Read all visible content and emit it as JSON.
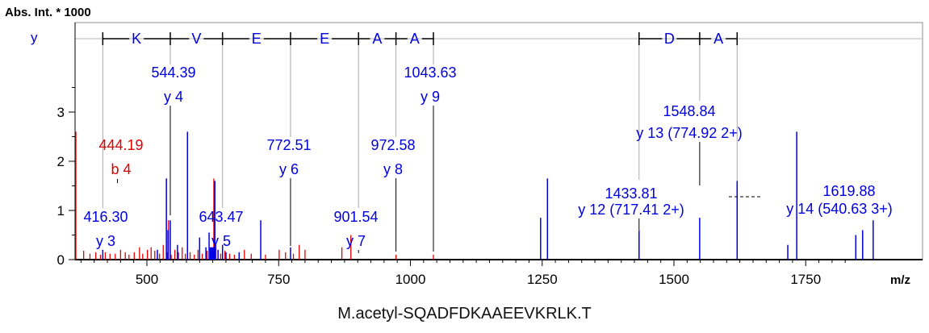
{
  "caption": "M.acetyl-SQADFDKAAEEVKRLK.T",
  "chart_data": {
    "type": "bar",
    "ylabel": "Abs. Int. * 1000",
    "xlabel": "m/z",
    "series_label": "y",
    "xlim": [
      350,
      1840
    ],
    "ylim": [
      0,
      4.5
    ],
    "xticks": [
      500,
      750,
      1000,
      1250,
      1500,
      1750
    ],
    "yticks": [
      0,
      1,
      2,
      3
    ],
    "colors": {
      "matched_y": "#0000e6",
      "matched_b": "#e60000",
      "label_y": "#0000dd",
      "label_b": "#dd0000",
      "axis": "#000000",
      "guide": "#aaaaaa"
    },
    "sequence_ladder": {
      "residues": [
        {
          "aa": "K",
          "from": 416.3,
          "to": 544.39
        },
        {
          "aa": "V",
          "from": 544.39,
          "to": 643.47
        },
        {
          "aa": "E",
          "from": 643.47,
          "to": 772.51
        },
        {
          "aa": "E",
          "from": 772.51,
          "to": 901.54
        },
        {
          "aa": "A",
          "from": 901.54,
          "to": 972.58
        },
        {
          "aa": "A",
          "from": 972.58,
          "to": 1043.63
        },
        {
          "aa": "D",
          "from": 1433.81,
          "to": 1548.84
        },
        {
          "aa": "A",
          "from": 1548.84,
          "to": 1619.88
        }
      ]
    },
    "annotations": [
      {
        "mz": "416.30",
        "ion": "y 3",
        "x": 416.3,
        "y": 0.2,
        "series": "y"
      },
      {
        "mz": "544.39",
        "ion": "y 4",
        "x": 544.39,
        "y": 1.65,
        "series": "y"
      },
      {
        "mz": "643.47",
        "ion": "y 5",
        "x": 643.47,
        "y": 1.55,
        "series": "y"
      },
      {
        "mz": "772.51",
        "ion": "y 6",
        "x": 772.51,
        "y": 0.25,
        "series": "y"
      },
      {
        "mz": "901.54",
        "ion": "y 7",
        "x": 901.54,
        "y": 0.15,
        "series": "y"
      },
      {
        "mz": "972.58",
        "ion": "y 8",
        "x": 972.58,
        "y": 0.12,
        "series": "y"
      },
      {
        "mz": "1043.63",
        "ion": "y 9",
        "x": 1043.63,
        "y": 0.12,
        "series": "y"
      },
      {
        "mz": "1433.81",
        "ion": "y 12 (717.41 2+)",
        "x": 1433.81,
        "y": 0.6,
        "series": "y"
      },
      {
        "mz": "1548.84",
        "ion": "y 13 (774.92 2+)",
        "x": 1548.84,
        "y": 0.82,
        "series": "y"
      },
      {
        "mz": "1619.88",
        "ion": "y 14 (540.63 3+)",
        "x": 1619.88,
        "y": 1.6,
        "series": "y"
      },
      {
        "mz": "444.19",
        "ion": "b 4",
        "x": 444.19,
        "y": 1.55,
        "series": "b"
      }
    ],
    "peaks_blue": [
      [
        416.3,
        0.2
      ],
      [
        520,
        0.2
      ],
      [
        537,
        1.65
      ],
      [
        540,
        0.6
      ],
      [
        544.4,
        0.8
      ],
      [
        558,
        0.3
      ],
      [
        577,
        2.6
      ],
      [
        600,
        0.45
      ],
      [
        612,
        0.25
      ],
      [
        618,
        0.55
      ],
      [
        624,
        0.2
      ],
      [
        629,
        1.6
      ],
      [
        635,
        0.2
      ],
      [
        643.5,
        0.3
      ],
      [
        650,
        0.15
      ],
      [
        675,
        0.15
      ],
      [
        716,
        0.8
      ],
      [
        772.5,
        0.25
      ],
      [
        1247,
        0.85
      ],
      [
        1260,
        1.65
      ],
      [
        1433.8,
        0.6
      ],
      [
        1548.8,
        0.85
      ],
      [
        1619.9,
        1.6
      ],
      [
        1716,
        0.3
      ],
      [
        1733,
        2.6
      ],
      [
        1845,
        0.5
      ],
      [
        1858,
        0.6
      ],
      [
        1878,
        0.8
      ]
    ],
    "peaks_red": [
      [
        350,
        2.6
      ],
      [
        380,
        0.18
      ],
      [
        392,
        0.12
      ],
      [
        403,
        0.15
      ],
      [
        412,
        0.1
      ],
      [
        421,
        0.15
      ],
      [
        430,
        0.12
      ],
      [
        440,
        0.12
      ],
      [
        450,
        0.2
      ],
      [
        459,
        0.15
      ],
      [
        466,
        0.1
      ],
      [
        476,
        0.15
      ],
      [
        486,
        0.25
      ],
      [
        492,
        0.12
      ],
      [
        501,
        0.2
      ],
      [
        508,
        0.25
      ],
      [
        515,
        0.18
      ],
      [
        524,
        0.12
      ],
      [
        531,
        0.3
      ],
      [
        538,
        0.15
      ],
      [
        541,
        0.8
      ],
      [
        546,
        0.1
      ],
      [
        553,
        0.2
      ],
      [
        560,
        0.15
      ],
      [
        567,
        0.25
      ],
      [
        573,
        0.12
      ],
      [
        582,
        0.15
      ],
      [
        590,
        0.1
      ],
      [
        597,
        0.2
      ],
      [
        605,
        0.12
      ],
      [
        614,
        0.18
      ],
      [
        620,
        0.25
      ],
      [
        627,
        1.65
      ],
      [
        631,
        0.3
      ],
      [
        640,
        0.12
      ],
      [
        648,
        0.18
      ],
      [
        657,
        0.12
      ],
      [
        666,
        0.1
      ],
      [
        685,
        0.2
      ],
      [
        698,
        0.12
      ],
      [
        725,
        0.1
      ],
      [
        751,
        0.2
      ],
      [
        763,
        0.15
      ],
      [
        778,
        0.12
      ],
      [
        789,
        0.3
      ],
      [
        800,
        0.2
      ],
      [
        870,
        0.25
      ],
      [
        887,
        0.5
      ],
      [
        972.6,
        0.1
      ],
      [
        1043.6,
        0.1
      ]
    ]
  }
}
